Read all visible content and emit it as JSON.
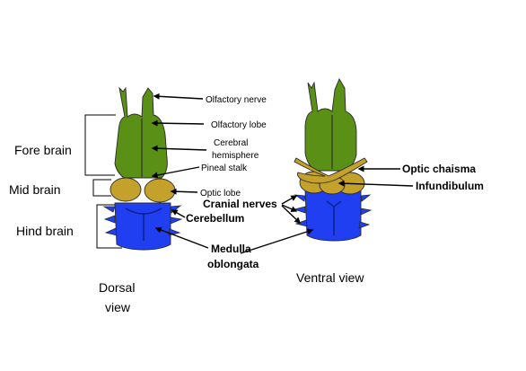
{
  "colors": {
    "forebrain": "#5a9016",
    "midbrain": "#c4a12a",
    "hindbrain": "#1f3ff0",
    "outline": "#2a2a2a"
  },
  "region_labels": {
    "fore_brain": "Fore brain",
    "mid_brain": "Mid brain",
    "hind_brain": "Hind brain"
  },
  "dorsal_labels": {
    "olfactory_nerve": "Olfactory nerve",
    "olfactory_lobe": "Olfactory lobe",
    "cerebral_hemisphere_line1": "Cerebral",
    "cerebral_hemisphere_line2": "hemisphere",
    "pineal_stalk": "Pineal stalk",
    "optic_lobe": "Optic lobe",
    "cerebellum": "Cerebellum",
    "medulla_line1": "Medulla",
    "medulla_line2": "oblongata"
  },
  "ventral_labels": {
    "optic_chiasma": "Optic chaisma",
    "infundibulum": "Infundibulum",
    "cranial_nerves": "Cranial nerves"
  },
  "view_titles": {
    "dorsal_line1": "Dorsal",
    "dorsal_line2": "view",
    "ventral": "Ventral view"
  }
}
